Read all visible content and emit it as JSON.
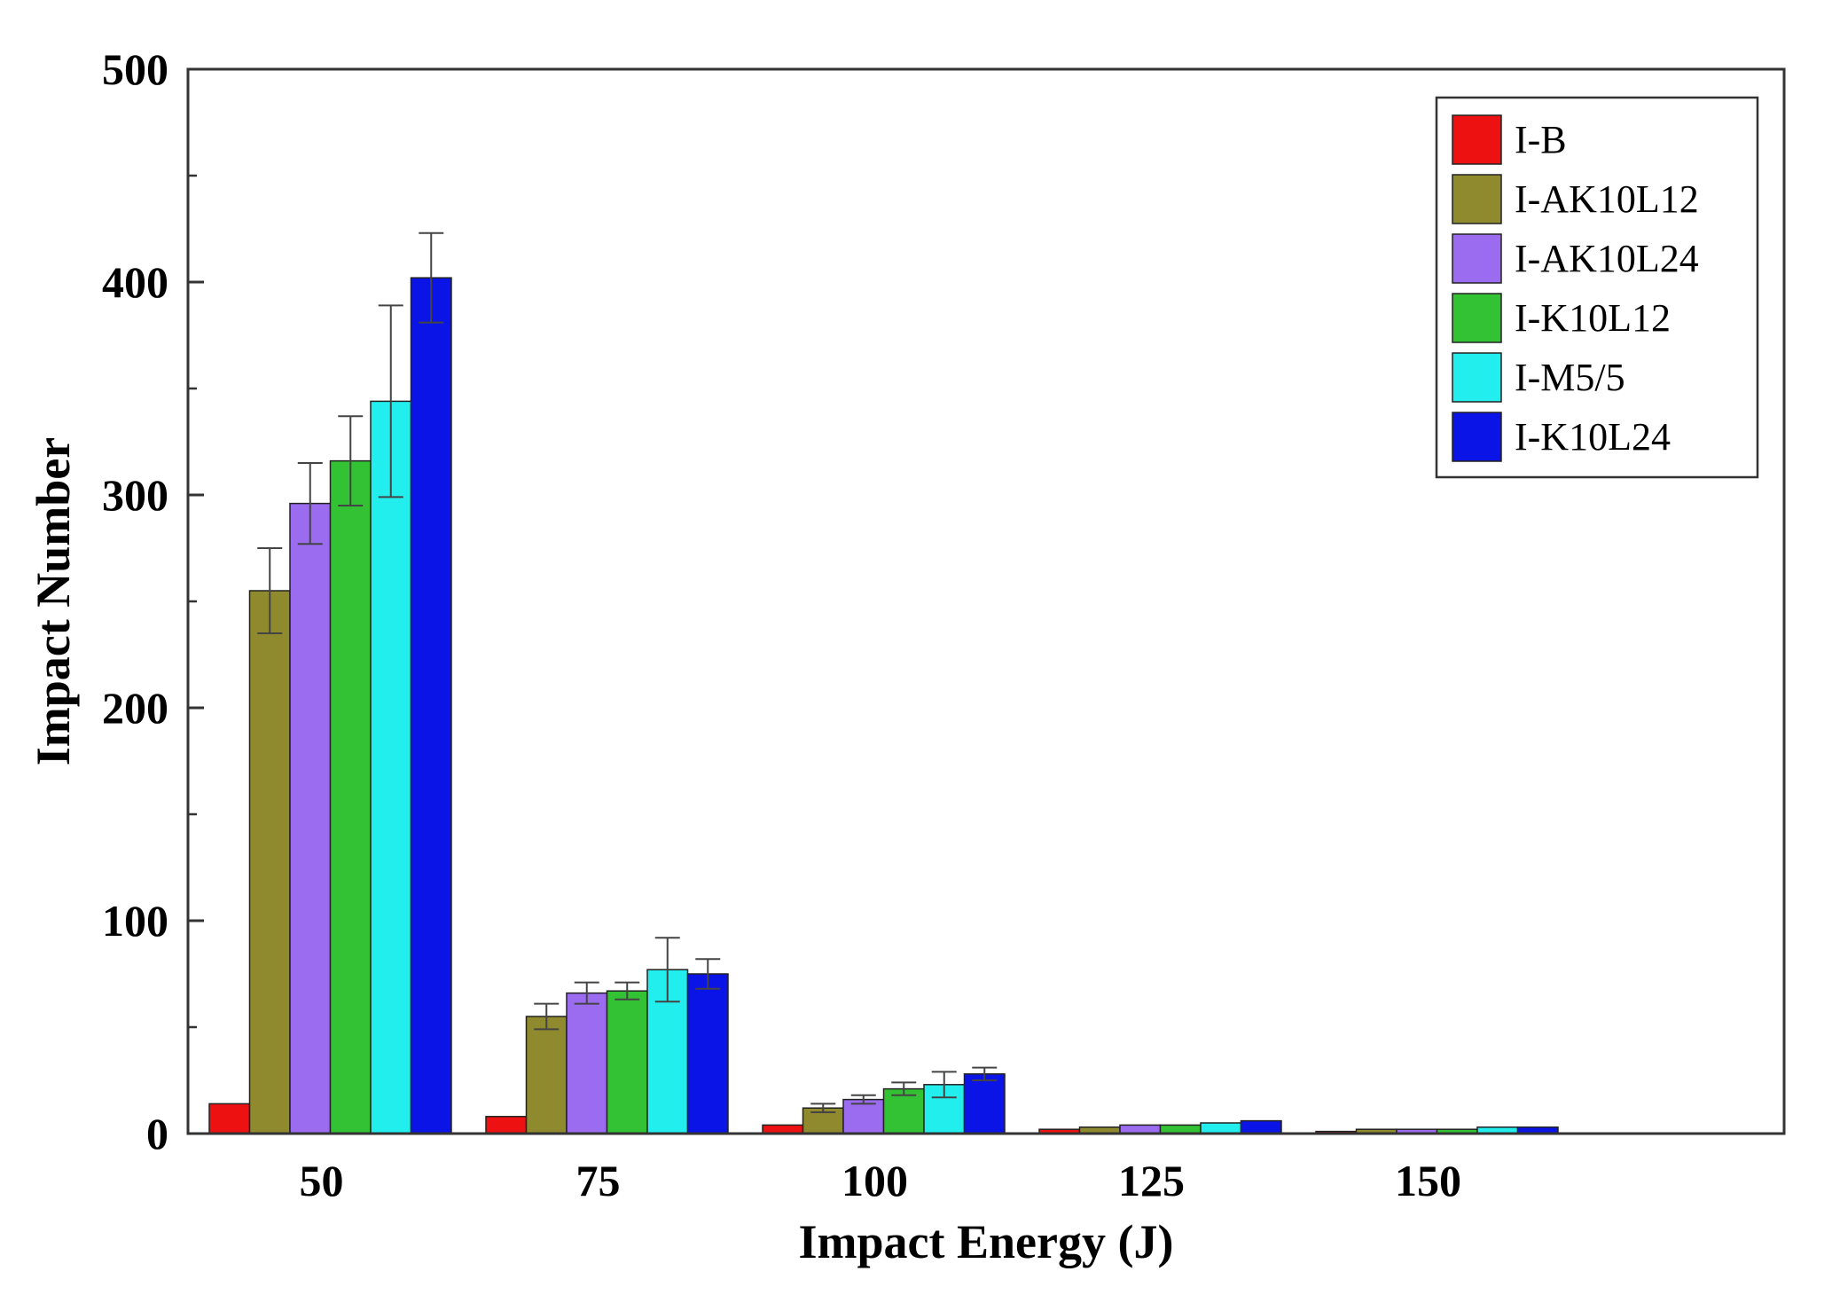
{
  "chart_data": {
    "type": "bar",
    "title": "",
    "xlabel": "Impact Energy (J)",
    "ylabel": "Impact Number",
    "ylim": [
      0,
      500
    ],
    "yticks": [
      0,
      100,
      200,
      300,
      400,
      500
    ],
    "categories": [
      "50",
      "75",
      "100",
      "125",
      "150"
    ],
    "legend_position": "top-right",
    "grid": false,
    "series": [
      {
        "name": "I-B",
        "color": "#ee1111",
        "values": [
          14,
          8,
          4,
          2,
          1
        ],
        "errors": [
          0,
          0,
          0,
          0,
          0
        ]
      },
      {
        "name": "I-AK10L12",
        "color": "#8f8a2e",
        "values": [
          255,
          55,
          12,
          3,
          2
        ],
        "errors": [
          20,
          6,
          2,
          0,
          0
        ]
      },
      {
        "name": "I-AK10L24",
        "color": "#9b6bf0",
        "values": [
          296,
          66,
          16,
          4,
          2
        ],
        "errors": [
          19,
          5,
          2,
          0,
          0
        ]
      },
      {
        "name": "I-K10L12",
        "color": "#33c233",
        "values": [
          316,
          67,
          21,
          4,
          2
        ],
        "errors": [
          21,
          4,
          3,
          0,
          0
        ]
      },
      {
        "name": "I-M5/5",
        "color": "#22eeee",
        "values": [
          344,
          77,
          23,
          5,
          3
        ],
        "errors": [
          45,
          15,
          6,
          0,
          0
        ]
      },
      {
        "name": "I-K10L24",
        "color": "#0a14e6",
        "values": [
          402,
          75,
          28,
          6,
          3
        ],
        "errors": [
          21,
          7,
          3,
          0,
          0
        ]
      }
    ]
  }
}
